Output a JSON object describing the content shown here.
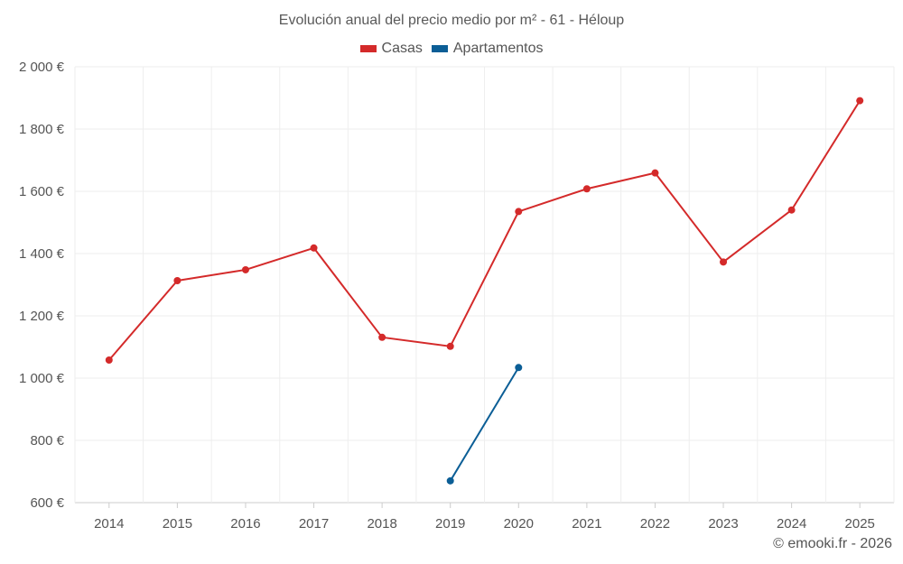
{
  "chart_data": {
    "type": "line",
    "title": "Evolución anual del precio medio por m² - 61 - Héloup",
    "xlabel": "",
    "ylabel": "",
    "categories": [
      "2014",
      "2015",
      "2016",
      "2017",
      "2018",
      "2019",
      "2020",
      "2021",
      "2022",
      "2023",
      "2024",
      "2025"
    ],
    "y_ticks": [
      600,
      800,
      1000,
      1200,
      1400,
      1600,
      1800,
      2000
    ],
    "y_tick_labels": [
      "600 €",
      "800 €",
      "1 000 €",
      "1 200 €",
      "1 400 €",
      "1 600 €",
      "1 800 €",
      "2 000 €"
    ],
    "ylim": [
      600,
      2000
    ],
    "grid": true,
    "legend_position": "top-center",
    "series": [
      {
        "name": "Casas",
        "color": "#d42a2a",
        "values": [
          1058,
          1313,
          1348,
          1418,
          1131,
          1102,
          1535,
          1608,
          1659,
          1373,
          1540,
          1891
        ]
      },
      {
        "name": "Apartamentos",
        "color": "#0b5e96",
        "values": [
          null,
          null,
          null,
          null,
          null,
          670,
          1034,
          null,
          null,
          null,
          null,
          null
        ]
      }
    ]
  },
  "footer": "© emooki.fr - 2026"
}
